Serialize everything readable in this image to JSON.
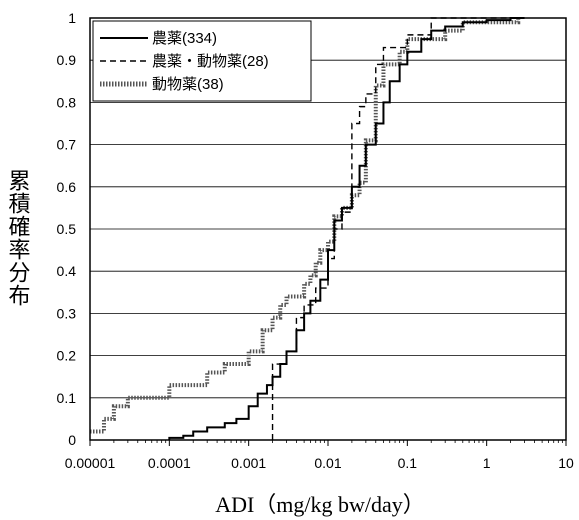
{
  "chart_data": {
    "type": "line",
    "xlabel": "ADI（mg/kg  bw/day）",
    "ylabel": "累積確率分布",
    "x_scale": "log",
    "xlim": [
      1e-05,
      10
    ],
    "ylim": [
      0,
      1
    ],
    "x_ticks": [
      "0.00001",
      "0.0001",
      "0.001",
      "0.01",
      "0.1",
      "1",
      "10"
    ],
    "y_ticks": [
      "0",
      "0.1",
      "0.2",
      "0.3",
      "0.4",
      "0.5",
      "0.6",
      "0.7",
      "0.8",
      "0.9",
      "1"
    ],
    "grid": "horizontal",
    "legend_position": "top-left",
    "series": [
      {
        "name": "農薬(334)",
        "style": "solid",
        "points": [
          [
            0.0001,
            0
          ],
          [
            0.0001,
            0.005
          ],
          [
            0.00015,
            0.005
          ],
          [
            0.00015,
            0.01
          ],
          [
            0.0002,
            0.01
          ],
          [
            0.0002,
            0.02
          ],
          [
            0.0003,
            0.02
          ],
          [
            0.0003,
            0.03
          ],
          [
            0.0005,
            0.03
          ],
          [
            0.0005,
            0.04
          ],
          [
            0.0007,
            0.04
          ],
          [
            0.0007,
            0.05
          ],
          [
            0.001,
            0.05
          ],
          [
            0.001,
            0.08
          ],
          [
            0.0013,
            0.08
          ],
          [
            0.0013,
            0.11
          ],
          [
            0.0017,
            0.11
          ],
          [
            0.0017,
            0.13
          ],
          [
            0.002,
            0.13
          ],
          [
            0.002,
            0.15
          ],
          [
            0.0025,
            0.15
          ],
          [
            0.0025,
            0.18
          ],
          [
            0.003,
            0.18
          ],
          [
            0.003,
            0.21
          ],
          [
            0.004,
            0.21
          ],
          [
            0.004,
            0.26
          ],
          [
            0.005,
            0.26
          ],
          [
            0.005,
            0.3
          ],
          [
            0.006,
            0.3
          ],
          [
            0.006,
            0.33
          ],
          [
            0.008,
            0.33
          ],
          [
            0.008,
            0.38
          ],
          [
            0.01,
            0.38
          ],
          [
            0.01,
            0.45
          ],
          [
            0.012,
            0.45
          ],
          [
            0.012,
            0.52
          ],
          [
            0.015,
            0.52
          ],
          [
            0.015,
            0.55
          ],
          [
            0.02,
            0.55
          ],
          [
            0.02,
            0.6
          ],
          [
            0.025,
            0.6
          ],
          [
            0.025,
            0.65
          ],
          [
            0.03,
            0.65
          ],
          [
            0.03,
            0.7
          ],
          [
            0.04,
            0.7
          ],
          [
            0.04,
            0.75
          ],
          [
            0.05,
            0.75
          ],
          [
            0.05,
            0.8
          ],
          [
            0.06,
            0.8
          ],
          [
            0.06,
            0.85
          ],
          [
            0.08,
            0.85
          ],
          [
            0.08,
            0.89
          ],
          [
            0.1,
            0.89
          ],
          [
            0.1,
            0.92
          ],
          [
            0.15,
            0.92
          ],
          [
            0.15,
            0.95
          ],
          [
            0.2,
            0.95
          ],
          [
            0.2,
            0.97
          ],
          [
            0.3,
            0.97
          ],
          [
            0.3,
            0.98
          ],
          [
            0.5,
            0.98
          ],
          [
            0.5,
            0.99
          ],
          [
            1,
            0.99
          ],
          [
            1,
            0.995
          ],
          [
            2,
            0.995
          ],
          [
            2,
            1
          ],
          [
            3,
            1
          ]
        ]
      },
      {
        "name": "農薬・動物薬(28)",
        "style": "dashed",
        "points": [
          [
            0.002,
            0
          ],
          [
            0.002,
            0.18
          ],
          [
            0.003,
            0.18
          ],
          [
            0.003,
            0.21
          ],
          [
            0.004,
            0.21
          ],
          [
            0.004,
            0.29
          ],
          [
            0.005,
            0.29
          ],
          [
            0.005,
            0.32
          ],
          [
            0.007,
            0.32
          ],
          [
            0.007,
            0.36
          ],
          [
            0.01,
            0.36
          ],
          [
            0.01,
            0.43
          ],
          [
            0.012,
            0.43
          ],
          [
            0.012,
            0.5
          ],
          [
            0.015,
            0.5
          ],
          [
            0.015,
            0.54
          ],
          [
            0.02,
            0.54
          ],
          [
            0.02,
            0.75
          ],
          [
            0.025,
            0.75
          ],
          [
            0.025,
            0.79
          ],
          [
            0.03,
            0.79
          ],
          [
            0.03,
            0.82
          ],
          [
            0.04,
            0.82
          ],
          [
            0.04,
            0.89
          ],
          [
            0.05,
            0.89
          ],
          [
            0.05,
            0.93
          ],
          [
            0.1,
            0.93
          ],
          [
            0.1,
            0.96
          ],
          [
            0.2,
            0.96
          ],
          [
            0.2,
            1
          ],
          [
            3,
            1
          ]
        ]
      },
      {
        "name": "動物薬(38)",
        "style": "dotted-thick",
        "points": [
          [
            1e-05,
            0.02
          ],
          [
            1.5e-05,
            0.02
          ],
          [
            1.5e-05,
            0.05
          ],
          [
            2e-05,
            0.05
          ],
          [
            2e-05,
            0.08
          ],
          [
            3e-05,
            0.08
          ],
          [
            3e-05,
            0.1
          ],
          [
            0.0001,
            0.1
          ],
          [
            0.0001,
            0.13
          ],
          [
            0.0003,
            0.13
          ],
          [
            0.0003,
            0.16
          ],
          [
            0.0005,
            0.16
          ],
          [
            0.0005,
            0.18
          ],
          [
            0.001,
            0.18
          ],
          [
            0.001,
            0.21
          ],
          [
            0.0015,
            0.21
          ],
          [
            0.0015,
            0.26
          ],
          [
            0.002,
            0.26
          ],
          [
            0.002,
            0.29
          ],
          [
            0.0025,
            0.29
          ],
          [
            0.0025,
            0.32
          ],
          [
            0.003,
            0.32
          ],
          [
            0.003,
            0.34
          ],
          [
            0.005,
            0.34
          ],
          [
            0.005,
            0.37
          ],
          [
            0.006,
            0.37
          ],
          [
            0.006,
            0.39
          ],
          [
            0.007,
            0.39
          ],
          [
            0.007,
            0.42
          ],
          [
            0.008,
            0.42
          ],
          [
            0.008,
            0.45
          ],
          [
            0.01,
            0.45
          ],
          [
            0.01,
            0.47
          ],
          [
            0.012,
            0.47
          ],
          [
            0.012,
            0.53
          ],
          [
            0.015,
            0.53
          ],
          [
            0.015,
            0.55
          ],
          [
            0.02,
            0.55
          ],
          [
            0.02,
            0.58
          ],
          [
            0.025,
            0.58
          ],
          [
            0.025,
            0.61
          ],
          [
            0.03,
            0.61
          ],
          [
            0.03,
            0.71
          ],
          [
            0.04,
            0.71
          ],
          [
            0.04,
            0.84
          ],
          [
            0.05,
            0.84
          ],
          [
            0.05,
            0.89
          ],
          [
            0.08,
            0.89
          ],
          [
            0.08,
            0.92
          ],
          [
            0.1,
            0.92
          ],
          [
            0.1,
            0.95
          ],
          [
            0.3,
            0.95
          ],
          [
            0.3,
            0.97
          ],
          [
            0.5,
            0.97
          ],
          [
            0.5,
            0.99
          ],
          [
            2.5,
            0.99
          ],
          [
            2.5,
            1
          ]
        ]
      }
    ]
  }
}
